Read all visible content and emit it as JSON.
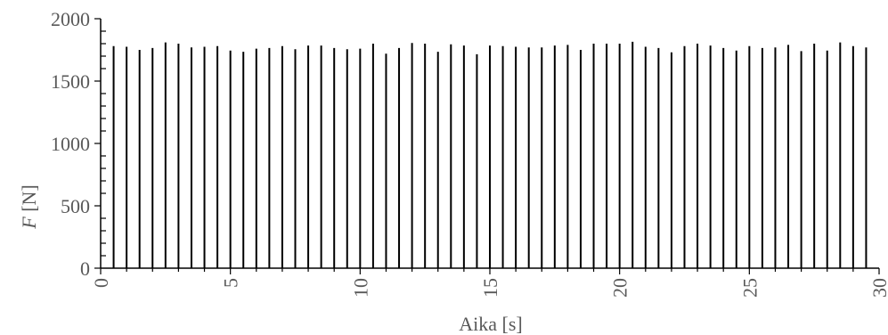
{
  "chart_data": {
    "type": "bar",
    "xlabel": "Aika [s]",
    "ylabel_var": "F",
    "ylabel_unit": " [N]",
    "xlim": [
      0,
      30
    ],
    "ylim": [
      0,
      2000
    ],
    "x_ticks": [
      0,
      5,
      10,
      15,
      20,
      25,
      30
    ],
    "x_tick_labels": [
      "0",
      "5",
      "10",
      "15",
      "20",
      "25",
      "30"
    ],
    "y_ticks": [
      0,
      500,
      1000,
      1500,
      2000
    ],
    "y_tick_labels": [
      "0",
      "500",
      "1000",
      "1500",
      "2000"
    ],
    "grid": false,
    "color": "#000000",
    "x": [
      0.5,
      1.0,
      1.5,
      2.0,
      2.5,
      3.0,
      3.5,
      4.0,
      4.5,
      5.0,
      5.5,
      6.0,
      6.5,
      7.0,
      7.5,
      8.0,
      8.5,
      9.0,
      9.5,
      10.0,
      10.5,
      11.0,
      11.5,
      12.0,
      12.5,
      13.0,
      13.5,
      14.0,
      14.5,
      15.0,
      15.5,
      16.0,
      16.5,
      17.0,
      17.5,
      18.0,
      18.5,
      19.0,
      19.5,
      20.0,
      20.5,
      21.0,
      21.5,
      22.0,
      22.5,
      23.0,
      23.5,
      24.0,
      24.5,
      25.0,
      25.5,
      26.0,
      26.5,
      27.0,
      27.5,
      28.0,
      28.5,
      29.0,
      29.5
    ],
    "values": [
      1780,
      1775,
      1750,
      1765,
      1810,
      1800,
      1770,
      1775,
      1780,
      1745,
      1735,
      1760,
      1765,
      1780,
      1755,
      1785,
      1785,
      1765,
      1755,
      1760,
      1800,
      1720,
      1765,
      1805,
      1800,
      1735,
      1795,
      1785,
      1715,
      1785,
      1780,
      1775,
      1770,
      1770,
      1785,
      1790,
      1750,
      1800,
      1800,
      1800,
      1815,
      1775,
      1765,
      1730,
      1780,
      1800,
      1785,
      1765,
      1745,
      1780,
      1765,
      1770,
      1790,
      1740,
      1800,
      1745,
      1810,
      1780,
      1770
    ]
  }
}
